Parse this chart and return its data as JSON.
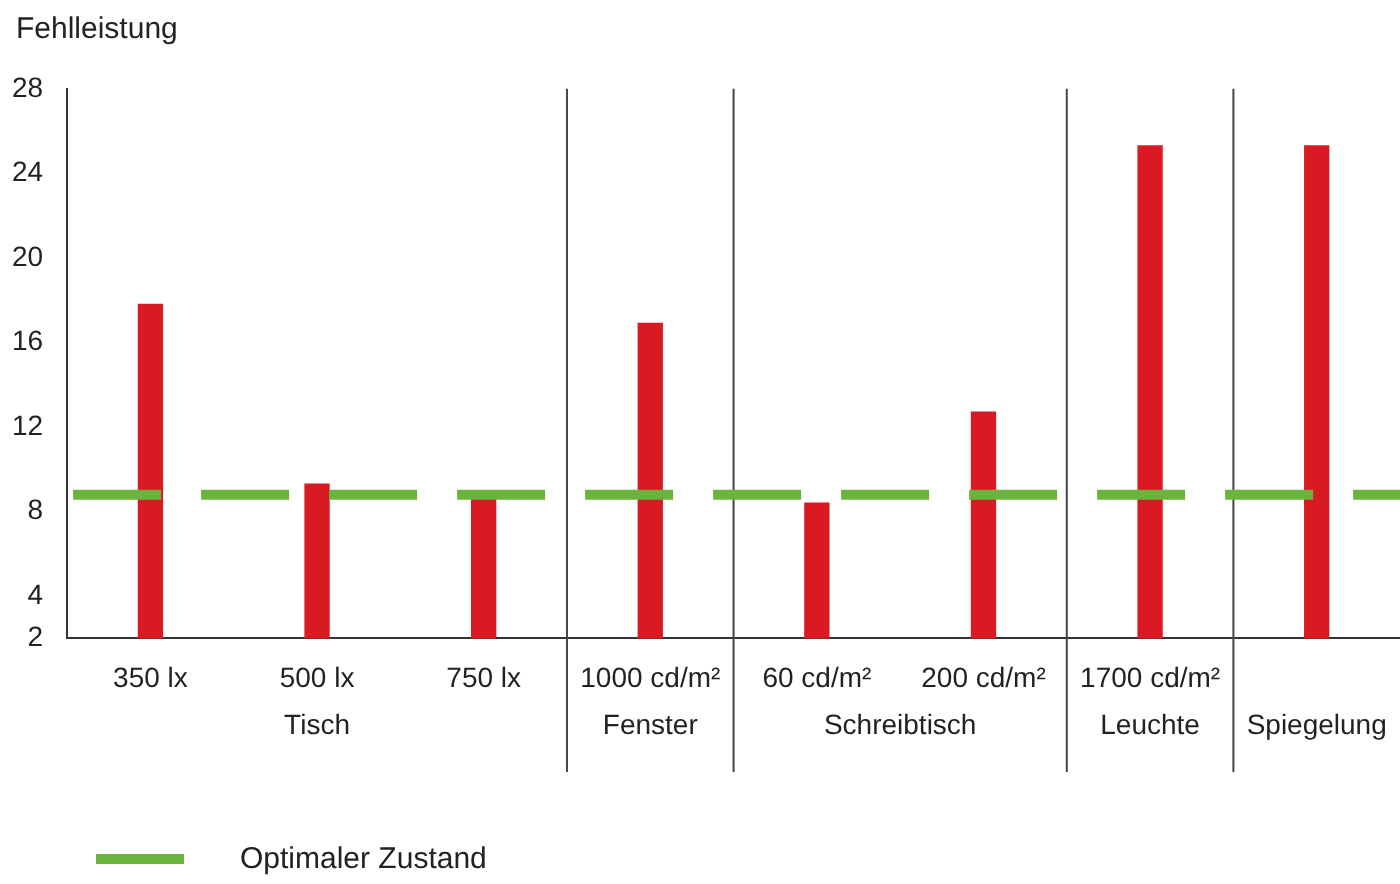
{
  "chart_data": {
    "type": "bar",
    "ylabel": "Fehlleistung",
    "categories": [
      "350 lx",
      "500 lx",
      "750 lx",
      "1000 cd/m²",
      "60 cd/m²",
      "200 cd/m²",
      "1700 cd/m²",
      null
    ],
    "values": [
      17.8,
      9.3,
      8.8,
      16.9,
      8.4,
      12.7,
      25.3,
      25.3
    ],
    "color": "#da1a22",
    "ylim": [
      2,
      28
    ],
    "yticks": [
      2,
      4,
      8,
      12,
      16,
      20,
      24,
      28
    ],
    "grid": false,
    "ref_lines": [
      {
        "axis": "y",
        "value": 8.8,
        "label": "Optimaler Zustand",
        "color": "#6ab43e",
        "line_style": "dashed"
      }
    ],
    "annotations": [
      "Tisch",
      "Fenster",
      "Schreibtisch",
      "Leuchte",
      "Spiegelung"
    ],
    "legend": "bottom left"
  }
}
